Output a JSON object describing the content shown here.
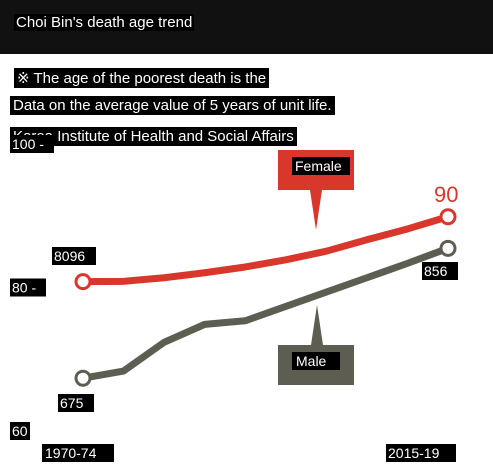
{
  "title": "Choi Bin's death age trend",
  "notes": [
    "※ The age of the poorest death is the",
    "Data on the average value of 5 years of unit life.",
    "Korea Institute of Health and Social Affairs"
  ],
  "colors": {
    "female": "#d9362c",
    "male": "#5e5d52",
    "title_bg": "#111111"
  },
  "chart_data": {
    "type": "line",
    "title": "Choi Bin's death age trend",
    "xlabel": "",
    "ylabel": "",
    "categories": [
      "1970-74",
      "",
      "",
      "",
      "",
      "",
      "",
      "",
      "",
      "2015-19"
    ],
    "y_ticks": [
      "100 -",
      "80 -",
      "60"
    ],
    "ylim": [
      60,
      100
    ],
    "grid": false,
    "series": [
      {
        "name": "Female",
        "values": [
          80.96,
          81.0,
          81.5,
          82.2,
          83.0,
          84.0,
          85.2,
          86.8,
          88.3,
          90.0
        ],
        "start_label": "8096",
        "end_label": "",
        "end_marker_label": "90"
      },
      {
        "name": "Male",
        "values": [
          67.5,
          68.5,
          72.5,
          75.0,
          75.5,
          77.5,
          79.5,
          81.5,
          83.5,
          85.6
        ],
        "start_label": "675",
        "end_label": "856",
        "end_marker_label": ""
      }
    ]
  }
}
